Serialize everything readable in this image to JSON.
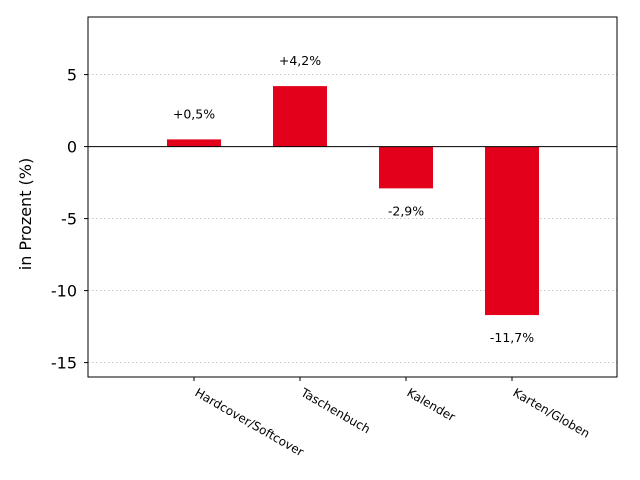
{
  "chart_data": {
    "type": "bar",
    "categories": [
      "Hardcover/Softcover",
      "Taschenbuch",
      "Kalender",
      "Karten/Globen"
    ],
    "values": [
      0.5,
      4.2,
      -2.9,
      -11.7
    ],
    "data_labels": [
      "+0,5%",
      "+4,2%",
      "-2,9%",
      "-11,7%"
    ],
    "title": "",
    "xlabel": "",
    "ylabel": "in Prozent (%)",
    "ylim": [
      -16,
      9
    ],
    "yticks": [
      5,
      0,
      -5,
      -10,
      -15
    ],
    "ytick_labels": [
      "5",
      "0",
      "-5",
      "-10",
      "-15"
    ],
    "grid": "horizontal dotted",
    "bar_color": "#e2001a",
    "zero_line": true
  }
}
